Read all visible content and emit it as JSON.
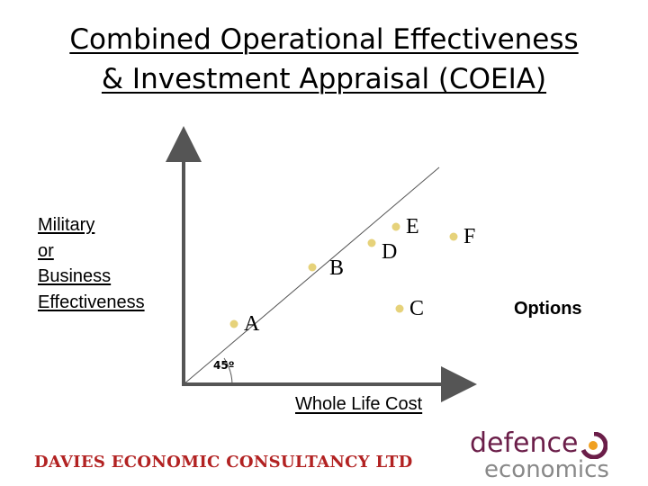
{
  "title": {
    "line1": "Combined Operational Effectiveness",
    "line2": "& Investment Appraisal (COEIA)"
  },
  "y_axis_label": [
    "Military",
    "or",
    "Business",
    "Effectiveness"
  ],
  "x_axis_label": "Whole Life Cost",
  "options_label": "Options",
  "angle_label": "45º",
  "points": [
    {
      "label": "A"
    },
    {
      "label": "B"
    },
    {
      "label": "D"
    },
    {
      "label": "E"
    },
    {
      "label": "C"
    },
    {
      "label": "F"
    }
  ],
  "colors": {
    "point": "#e6d27a",
    "axis": "#555555",
    "footer": "#b22222",
    "logo_primary": "#6b1e49",
    "logo_secondary": "#888888"
  },
  "footer": {
    "company": "DAVIES ECONOMIC CONSULTANCY LTD",
    "logo_line1": "defence",
    "logo_line2": "economics"
  }
}
